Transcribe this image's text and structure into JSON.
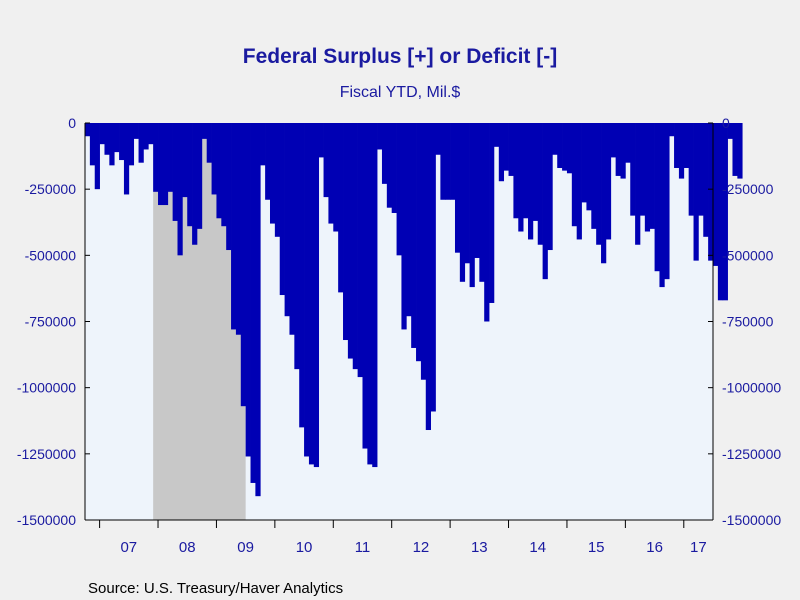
{
  "chart_data": {
    "type": "bar",
    "title": "Federal Surplus [+] or Deficit [-]",
    "subtitle": "Fiscal YTD, Mil.$",
    "source": "Source:  U.S. Treasury/Haver Analytics",
    "ylim": [
      -1500000,
      0
    ],
    "yticks": [
      0,
      -250000,
      -500000,
      -750000,
      -1000000,
      -1250000,
      -1500000
    ],
    "ytick_labels": [
      "0",
      "-250000",
      "-500000",
      "-750000",
      "-1000000",
      "-1250000",
      "-1500000"
    ],
    "x_start": "2006-10",
    "xlim": [
      "2006-10",
      "2017-06"
    ],
    "year_labels": [
      "07",
      "08",
      "09",
      "10",
      "11",
      "12",
      "13",
      "14",
      "15",
      "16",
      "17"
    ],
    "recession": {
      "start": "2007-12",
      "end": "2009-06"
    },
    "colors": {
      "bar": "#0000b4",
      "plot_bg": "#eef4fb",
      "recession": "#c8c8c8",
      "text": "#1a1aa0",
      "axis": "#000000",
      "page_bg": "#f0f0f0"
    },
    "values": [
      -50000,
      -160000,
      -250000,
      -80000,
      -120000,
      -160000,
      -110000,
      -140000,
      -270000,
      -160000,
      -60000,
      -150000,
      -100000,
      -80000,
      -260000,
      -310000,
      -310000,
      -260000,
      -370000,
      -500000,
      -280000,
      -390000,
      -460000,
      -400000,
      -60000,
      -150000,
      -270000,
      -360000,
      -390000,
      -480000,
      -780000,
      -800000,
      -1070000,
      -1260000,
      -1360000,
      -1410000,
      -160000,
      -290000,
      -380000,
      -430000,
      -650000,
      -730000,
      -800000,
      -930000,
      -1150000,
      -1260000,
      -1290000,
      -1300000,
      -130000,
      -280000,
      -380000,
      -410000,
      -640000,
      -820000,
      -890000,
      -930000,
      -960000,
      -1230000,
      -1290000,
      -1300000,
      -100000,
      -230000,
      -320000,
      -340000,
      -500000,
      -780000,
      -730000,
      -850000,
      -900000,
      -970000,
      -1160000,
      -1090000,
      -120000,
      -290000,
      -290000,
      -290000,
      -490000,
      -600000,
      -530000,
      -620000,
      -510000,
      -600000,
      -750000,
      -680000,
      -90000,
      -220000,
      -180000,
      -200000,
      -360000,
      -410000,
      -360000,
      -440000,
      -370000,
      -460000,
      -590000,
      -480000,
      -120000,
      -170000,
      -180000,
      -190000,
      -390000,
      -440000,
      -300000,
      -330000,
      -400000,
      -460000,
      -530000,
      -440000,
      -130000,
      -200000,
      -210000,
      -150000,
      -350000,
      -460000,
      -350000,
      -410000,
      -400000,
      -560000,
      -620000,
      -590000,
      -50000,
      -170000,
      -210000,
      -170000,
      -350000,
      -520000,
      -350000,
      -430000,
      -520000,
      -540000,
      -670000,
      -670000,
      -60000,
      -200000,
      -210000
    ]
  }
}
